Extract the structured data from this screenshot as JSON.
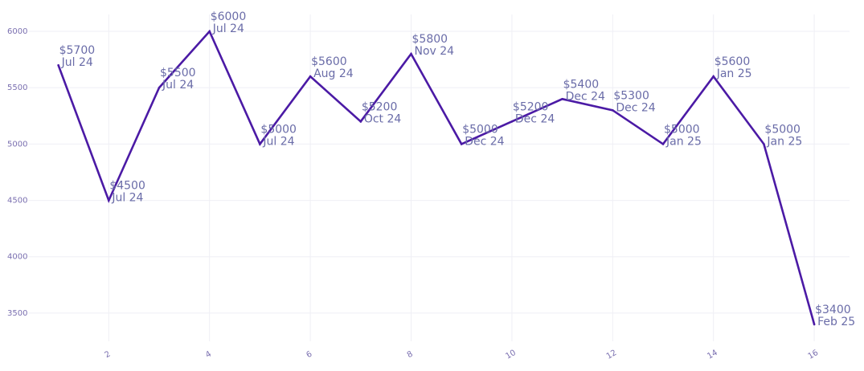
{
  "chart_data": {
    "type": "line",
    "title": "",
    "xlabel": "",
    "ylabel": "",
    "xlim": [
      0.4,
      16.7
    ],
    "ylim": [
      3250,
      6150
    ],
    "x_ticks": [
      2,
      4,
      6,
      8,
      10,
      12,
      14,
      16
    ],
    "y_ticks": [
      3500,
      4000,
      4500,
      5000,
      5500,
      6000
    ],
    "grid": true,
    "legend": "none",
    "line_color": "#4b1aa5",
    "series": [
      {
        "points": [
          {
            "x": 1,
            "y": 5700,
            "value_label": "$5700",
            "date_label": "Jul 24"
          },
          {
            "x": 2,
            "y": 4500,
            "value_label": "$4500",
            "date_label": "Jul 24"
          },
          {
            "x": 3,
            "y": 5500,
            "value_label": "$5500",
            "date_label": "Jul 24"
          },
          {
            "x": 4,
            "y": 6000,
            "value_label": "$6000",
            "date_label": "Jul 24"
          },
          {
            "x": 5,
            "y": 5000,
            "value_label": "$5000",
            "date_label": "Jul 24"
          },
          {
            "x": 6,
            "y": 5600,
            "value_label": "$5600",
            "date_label": "Aug 24"
          },
          {
            "x": 7,
            "y": 5200,
            "value_label": "$5200",
            "date_label": "Oct 24"
          },
          {
            "x": 8,
            "y": 5800,
            "value_label": "$5800",
            "date_label": "Nov 24"
          },
          {
            "x": 9,
            "y": 5000,
            "value_label": "$5000",
            "date_label": "Dec 24"
          },
          {
            "x": 10,
            "y": 5200,
            "value_label": "$5200",
            "date_label": "Dec 24"
          },
          {
            "x": 11,
            "y": 5400,
            "value_label": "$5400",
            "date_label": "Dec 24"
          },
          {
            "x": 12,
            "y": 5300,
            "value_label": "$5300",
            "date_label": "Dec 24"
          },
          {
            "x": 13,
            "y": 5000,
            "value_label": "$5000",
            "date_label": "Jan 25"
          },
          {
            "x": 14,
            "y": 5600,
            "value_label": "$5600",
            "date_label": "Jan 25"
          },
          {
            "x": 15,
            "y": 5000,
            "value_label": "$5000",
            "date_label": "Jan 25"
          },
          {
            "x": 16,
            "y": 3400,
            "value_label": "$3400",
            "date_label": "Feb 25"
          }
        ]
      }
    ]
  }
}
